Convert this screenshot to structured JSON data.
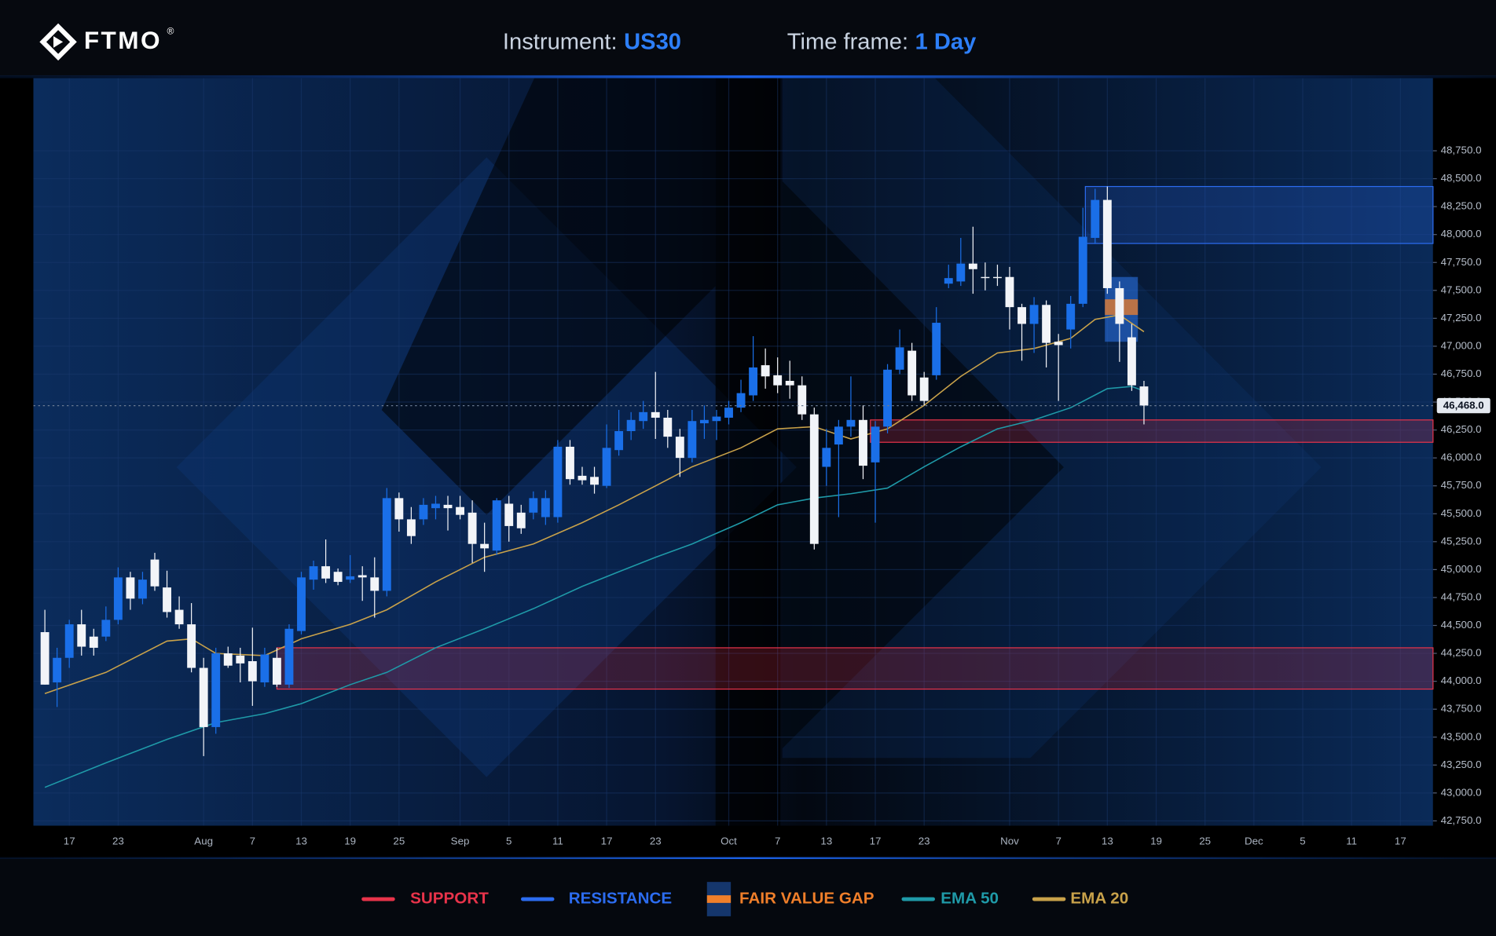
{
  "brand": "FTMO",
  "trademark": "®",
  "chart_data": {
    "type": "candlestick",
    "instrument_label": "Instrument:",
    "instrument": "US30",
    "timeframe_label": "Time frame:",
    "timeframe": "1 Day",
    "up_color": "#1a6fe8",
    "down_color": "#f2f4f8",
    "open": [
      44440,
      43990,
      44210,
      44510,
      44400,
      44400,
      44550,
      44930,
      44740,
      45090,
      44840,
      44640,
      44510,
      44120,
      43590,
      44250,
      44230,
      44180,
      43990,
      44210,
      43970,
      44450,
      44910,
      45030,
      44980,
      44910,
      44950,
      44930,
      44810,
      45640,
      45450,
      45450,
      45550,
      45580,
      45560,
      45510,
      45230,
      45170,
      45590,
      45510,
      45510,
      45470,
      45470,
      46100,
      45840,
      45830,
      45750,
      46070,
      46240,
      46330,
      46410,
      46360,
      46190,
      46000,
      46310,
      46330,
      46360,
      46450,
      46560,
      46830,
      46740,
      46690,
      46650,
      46390,
      45920,
      46120,
      46280,
      46340,
      45960,
      46280,
      46790,
      46960,
      46720,
      46740,
      47560,
      47580,
      47740,
      47620,
      47620,
      47620,
      47350,
      47200,
      47370,
      47040,
      47150,
      47380,
      47970,
      48310,
      47520,
      47080,
      46640
    ],
    "high": [
      44640,
      44300,
      44550,
      44640,
      44470,
      44670,
      45020,
      44980,
      44980,
      45150,
      44990,
      44760,
      44700,
      44210,
      44300,
      44310,
      44300,
      44480,
      44300,
      44300,
      44510,
      44980,
      45080,
      45270,
      45010,
      45130,
      45030,
      45110,
      45730,
      45690,
      45560,
      45640,
      45660,
      45660,
      45660,
      45620,
      45420,
      45640,
      45660,
      45580,
      45700,
      45710,
      46160,
      46160,
      45920,
      45920,
      46300,
      46430,
      46410,
      46510,
      46770,
      46430,
      46260,
      46430,
      46470,
      46430,
      46510,
      46700,
      47090,
      46980,
      46900,
      46870,
      46730,
      46450,
      46260,
      46340,
      46730,
      46470,
      46330,
      46840,
      47150,
      47030,
      46770,
      47350,
      47730,
      47970,
      48070,
      47750,
      47730,
      47710,
      47380,
      47440,
      47410,
      47110,
      47450,
      48240,
      48410,
      48430,
      47580,
      47200,
      46690
    ],
    "low": [
      43970,
      43770,
      44120,
      44230,
      44230,
      44360,
      44510,
      44640,
      44690,
      44810,
      44570,
      44470,
      44080,
      43330,
      43530,
      44120,
      43990,
      43780,
      43950,
      43950,
      43940,
      44420,
      44820,
      44880,
      44860,
      44880,
      44720,
      44570,
      44760,
      45340,
      45230,
      45400,
      45450,
      45350,
      45450,
      45060,
      44980,
      45130,
      45250,
      45320,
      45450,
      45400,
      45420,
      45760,
      45760,
      45680,
      45730,
      46020,
      46160,
      46260,
      46170,
      46090,
      45830,
      45960,
      46170,
      46160,
      46300,
      46410,
      46510,
      46620,
      46580,
      46530,
      46340,
      45180,
      45750,
      45470,
      46190,
      45810,
      45420,
      46220,
      46750,
      46510,
      46470,
      46700,
      47520,
      47540,
      47470,
      47500,
      47540,
      47150,
      46870,
      46940,
      46810,
      46510,
      46980,
      47350,
      47920,
      47470,
      46860,
      46600,
      46300
    ],
    "close": [
      43970,
      44210,
      44510,
      44310,
      44300,
      44550,
      44930,
      44740,
      44910,
      44850,
      44620,
      44510,
      44120,
      43590,
      44250,
      44140,
      44160,
      44000,
      44240,
      43970,
      44470,
      44930,
      45030,
      44920,
      44890,
      44940,
      44930,
      44810,
      45640,
      45450,
      45300,
      45580,
      45590,
      45550,
      45490,
      45230,
      45190,
      45620,
      45390,
      45370,
      45640,
      45640,
      46100,
      45810,
      45800,
      45760,
      46090,
      46240,
      46340,
      46410,
      46360,
      46190,
      46000,
      46330,
      46340,
      46370,
      46450,
      46580,
      46810,
      46730,
      46650,
      46650,
      46390,
      45230,
      46090,
      46280,
      46340,
      45930,
      46280,
      46790,
      46990,
      46560,
      46510,
      47210,
      47610,
      47740,
      47690,
      47610,
      47610,
      47350,
      47200,
      47370,
      47030,
      47010,
      47380,
      47980,
      48310,
      47520,
      47200,
      46650,
      46468
    ],
    "xlim": [
      -0.94,
      113.67
    ],
    "xticks": [
      {
        "value": 2,
        "label": "17"
      },
      {
        "value": 6,
        "label": "23"
      },
      {
        "value": 13,
        "label": "Aug"
      },
      {
        "value": 17,
        "label": "7"
      },
      {
        "value": 21,
        "label": "13"
      },
      {
        "value": 25,
        "label": "19"
      },
      {
        "value": 29,
        "label": "25"
      },
      {
        "value": 34,
        "label": "Sep"
      },
      {
        "value": 38,
        "label": "5"
      },
      {
        "value": 42,
        "label": "11"
      },
      {
        "value": 46,
        "label": "17"
      },
      {
        "value": 50,
        "label": "23"
      },
      {
        "value": 56,
        "label": "Oct"
      },
      {
        "value": 60,
        "label": "7"
      },
      {
        "value": 64,
        "label": "13"
      },
      {
        "value": 68,
        "label": "17"
      },
      {
        "value": 72,
        "label": "23"
      },
      {
        "value": 79,
        "label": "Nov"
      },
      {
        "value": 83,
        "label": "7"
      },
      {
        "value": 87,
        "label": "13"
      },
      {
        "value": 91,
        "label": "19"
      },
      {
        "value": 95,
        "label": "25"
      },
      {
        "value": 99,
        "label": "Dec"
      },
      {
        "value": 103,
        "label": "5"
      },
      {
        "value": 107,
        "label": "11"
      },
      {
        "value": 111,
        "label": "17"
      }
    ],
    "ylim": [
      42707,
      49400
    ],
    "yticks": [
      {
        "value": 42750,
        "label": "42,750.0"
      },
      {
        "value": 43000,
        "label": "43,000.0"
      },
      {
        "value": 43250,
        "label": "43,250.0"
      },
      {
        "value": 43500,
        "label": "43,500.0"
      },
      {
        "value": 43750,
        "label": "43,750.0"
      },
      {
        "value": 44000,
        "label": "44,000.0"
      },
      {
        "value": 44250,
        "label": "44,250.0"
      },
      {
        "value": 44500,
        "label": "44,500.0"
      },
      {
        "value": 44750,
        "label": "44,750.0"
      },
      {
        "value": 45000,
        "label": "45,000.0"
      },
      {
        "value": 45250,
        "label": "45,250.0"
      },
      {
        "value": 45500,
        "label": "45,500.0"
      },
      {
        "value": 45750,
        "label": "45,750.0"
      },
      {
        "value": 46000,
        "label": "46,000.0"
      },
      {
        "value": 46250,
        "label": "46,250.0"
      },
      {
        "value": 46500,
        "label": "46,500.0"
      },
      {
        "value": 46750,
        "label": "46,750.0"
      },
      {
        "value": 47000,
        "label": "47,000.0"
      },
      {
        "value": 47250,
        "label": "47,250.0"
      },
      {
        "value": 47500,
        "label": "47,500.0"
      },
      {
        "value": 47750,
        "label": "47,750.0"
      },
      {
        "value": 48000,
        "label": "48,000.0"
      },
      {
        "value": 48250,
        "label": "48,250.0"
      },
      {
        "value": 48500,
        "label": "48,500.0"
      },
      {
        "value": 48750,
        "label": "48,750.0"
      }
    ],
    "last_price": {
      "value": 46468,
      "label": "46,468.0"
    },
    "series": [
      {
        "name": "EMA 50",
        "color": "#1f9aa8",
        "x": [
          0,
          5,
          10,
          14,
          18,
          21,
          25,
          28,
          32,
          36,
          40,
          44,
          47,
          50,
          53,
          57,
          60,
          63,
          66,
          69,
          72,
          75,
          78,
          81,
          84,
          87,
          89,
          90
        ],
        "values": [
          43050,
          43270,
          43480,
          43630,
          43710,
          43800,
          43970,
          44080,
          44300,
          44470,
          44650,
          44850,
          44980,
          45110,
          45230,
          45420,
          45580,
          45640,
          45680,
          45730,
          45920,
          46100,
          46260,
          46340,
          46450,
          46620,
          46640,
          46600
        ]
      },
      {
        "name": "EMA 20",
        "color": "#c9a24a",
        "x": [
          0,
          5,
          10,
          12,
          14,
          18,
          21,
          25,
          28,
          32,
          36,
          40,
          44,
          47,
          50,
          53,
          57,
          60,
          63,
          66,
          69,
          72,
          75,
          78,
          81,
          84,
          86,
          88,
          90
        ],
        "values": [
          43890,
          44080,
          44360,
          44380,
          44250,
          44230,
          44380,
          44510,
          44640,
          44890,
          45110,
          45230,
          45420,
          45580,
          45750,
          45920,
          46090,
          46260,
          46280,
          46170,
          46260,
          46470,
          46730,
          46940,
          46980,
          47070,
          47240,
          47280,
          47130
        ]
      }
    ],
    "zones": [
      {
        "name": "SUPPORT",
        "color": "#e8334a",
        "bands": [
          {
            "x_start": 67.6,
            "low": 46140,
            "high": 46340
          },
          {
            "x_start": 19.0,
            "low": 43930,
            "high": 44300
          }
        ]
      },
      {
        "name": "RESISTANCE",
        "color": "#2c6cf0",
        "bands": [
          {
            "x_start": 85.2,
            "low": 47920,
            "high": 48430
          }
        ]
      },
      {
        "name": "FAIR VALUE GAP",
        "color": "#2a6fe0",
        "inner_color": "#f07f2a",
        "bands": [
          {
            "x_start": 86.8,
            "x_end": 89.5,
            "low": 47040,
            "high": 47620,
            "inner_low": 47280,
            "inner_high": 47420
          }
        ]
      }
    ]
  }
}
